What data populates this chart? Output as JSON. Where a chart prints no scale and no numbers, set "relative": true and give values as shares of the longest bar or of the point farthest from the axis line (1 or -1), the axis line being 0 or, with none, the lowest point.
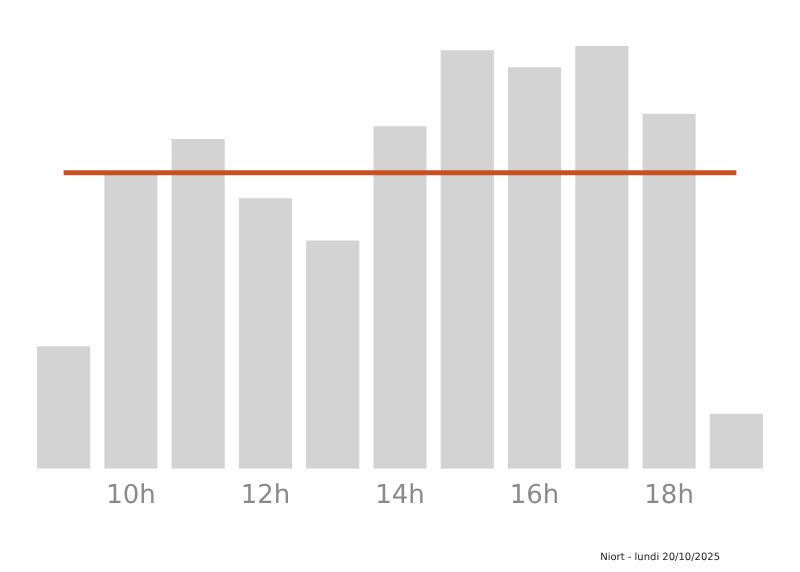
{
  "chart_data": {
    "type": "bar",
    "relative": true,
    "categories": [
      null,
      "10h",
      null,
      "12h",
      null,
      "14h",
      null,
      "16h",
      null,
      "18h",
      null
    ],
    "values": [
      0.29,
      0.7,
      0.78,
      0.64,
      0.54,
      0.81,
      0.99,
      0.95,
      1,
      0.84,
      0.13
    ],
    "color": "#d3d3d3",
    "ref_lines": [
      {
        "axis": "y",
        "value": 0.7,
        "color": "#c8501e"
      }
    ],
    "grid": false,
    "legend": false,
    "annotations": [
      "Niort - lundi 20/10/2025"
    ]
  }
}
